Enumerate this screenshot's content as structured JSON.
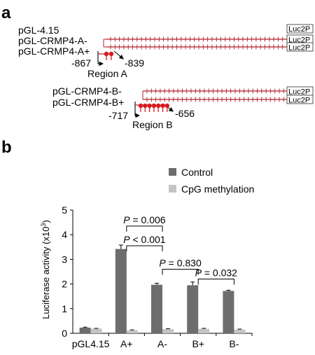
{
  "panel_a": {
    "letter": "a",
    "constructs_a": [
      "pGL-4.15",
      "pGL-CRMP4-A-",
      "pGL-CRMP4-A+"
    ],
    "region_a_label": "Region A",
    "region_a_start": "-867",
    "region_a_end": "-839",
    "constructs_b": [
      "pGL-CRMP4-B-",
      "pGL-CRMP4-B+"
    ],
    "region_b_label": "Region B",
    "region_b_start": "-717",
    "region_b_end": "-656",
    "luc_label": "Luc2P",
    "region_a_cpg_count": 2,
    "region_b_cpg_count": 7,
    "colors": {
      "line": "#b0202a",
      "lollipop": "#d81b22",
      "box": "#444444"
    }
  },
  "panel_b": {
    "letter": "b"
  },
  "chart_data": {
    "type": "bar",
    "categories": [
      "pGL4.15",
      "A+",
      "A-",
      "B+",
      "B-"
    ],
    "series": [
      {
        "name": "Control",
        "values": [
          0.23,
          3.42,
          1.97,
          1.95,
          1.72
        ],
        "errors": [
          0.02,
          0.16,
          0.06,
          0.13,
          0.03
        ],
        "color": "#6d6d6d"
      },
      {
        "name": "CpG methylation",
        "values": [
          0.19,
          0.12,
          0.17,
          0.18,
          0.15
        ],
        "errors": [
          0.01,
          0.02,
          0.02,
          0.02,
          0.02
        ],
        "color": "#c4c4c4"
      }
    ],
    "ylabel": "Luciferase activity (x10",
    "ylabel_sup": "3",
    "ylabel_end": ")",
    "ylim": [
      0,
      5
    ],
    "yticks": [
      "0",
      "1",
      "2",
      "3",
      "4",
      "5"
    ],
    "grid": false,
    "legend_position": "top-right",
    "annotations": [
      {
        "text": "P = 0.006",
        "from": "A+",
        "to": "A-"
      },
      {
        "text": "P < 0.001",
        "from": "A+",
        "to": "A-"
      },
      {
        "text": "P = 0.830",
        "from": "A-",
        "to": "B+"
      },
      {
        "text": "P = 0.032",
        "from": "B+",
        "to": "B-"
      }
    ]
  }
}
